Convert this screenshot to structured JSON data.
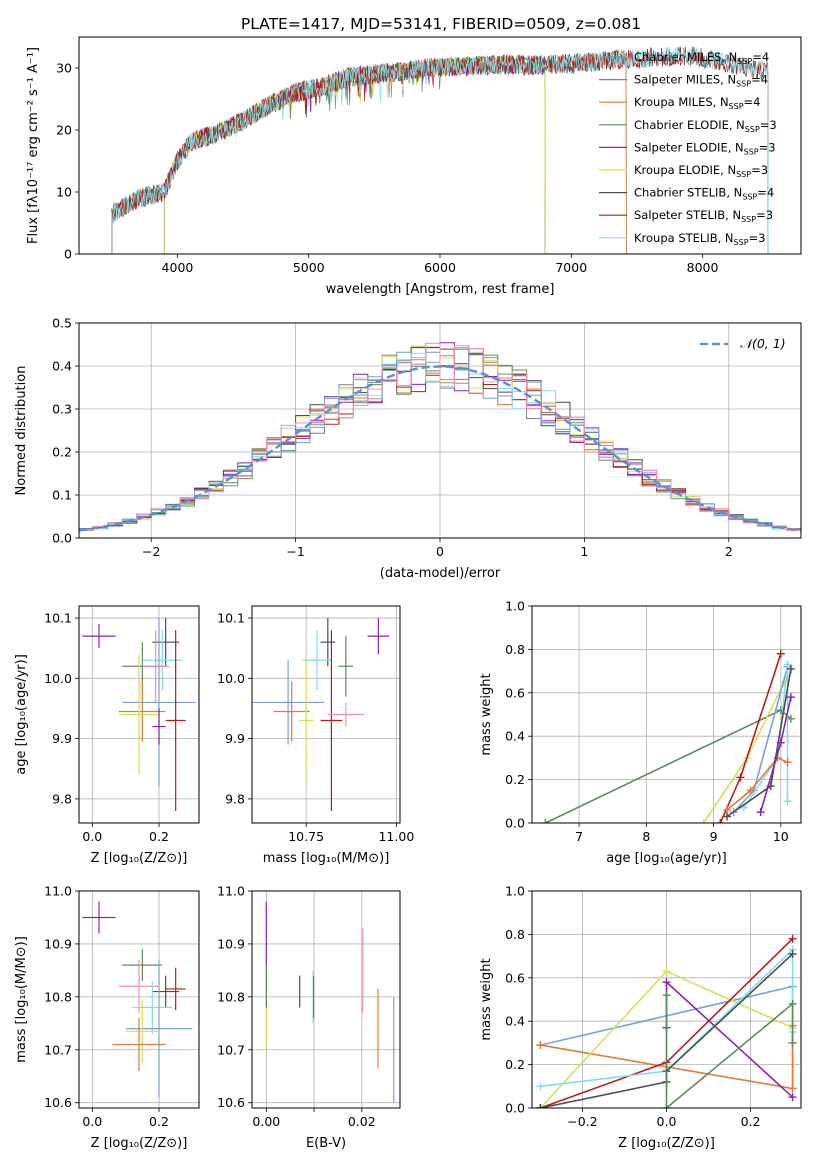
{
  "figure": {
    "title": "PLATE=1417, MJD=53141, FIBERID=0509, z=0.081"
  },
  "chart_data": [
    {
      "id": "spectrum",
      "type": "line",
      "xlabel": "wavelength [Angstrom, rest frame]",
      "ylabel": "Flux [fλ10⁻¹⁷ erg cm⁻² s⁻¹ A⁻¹]",
      "xlim": [
        3250,
        8750
      ],
      "ylim": [
        0,
        35
      ],
      "xticks": [
        4000,
        5000,
        6000,
        7000,
        8000
      ],
      "yticks": [
        0,
        10,
        20,
        30
      ],
      "grid": false,
      "legend_position": "right",
      "continuum": {
        "x": [
          3500,
          3700,
          3900,
          4000,
          4100,
          4300,
          4500,
          4700,
          4900,
          5100,
          5300,
          5500,
          5700,
          5900,
          6100,
          6300,
          6500,
          6700,
          6900,
          7100,
          7300,
          7500,
          7700,
          7900,
          8100,
          8300,
          8500
        ],
        "y": [
          6.5,
          9,
          10,
          15,
          18,
          19.5,
          21.5,
          24,
          26,
          27,
          28.5,
          29,
          29.5,
          30,
          30.2,
          30.4,
          30.6,
          30.4,
          30.6,
          30.9,
          31.2,
          31.5,
          31.8,
          32,
          31.2,
          30.2,
          29.5
        ]
      },
      "series": [
        {
          "name": "Chabrier MILES, N_SSP=4",
          "color": "#6a9fa3",
          "x_range": [
            3500,
            7420
          ]
        },
        {
          "name": "Salpeter MILES, N_SSP=4",
          "color": "#7f7f7f",
          "x_range": [
            3500,
            7420
          ]
        },
        {
          "name": "Kroupa MILES, N_SSP=4",
          "color": "#e07b39",
          "x_range": [
            3500,
            7420
          ]
        },
        {
          "name": "Chabrier ELODIE, N_SSP=3",
          "color": "#5b8c5a",
          "x_range": [
            3900,
            6800
          ]
        },
        {
          "name": "Salpeter ELODIE, N_SSP=3",
          "color": "#8e24aa",
          "x_range": [
            3900,
            6800
          ]
        },
        {
          "name": "Kroupa ELODIE, N_SSP=3",
          "color": "#d4e157",
          "x_range": [
            3900,
            6800
          ]
        },
        {
          "name": "Chabrier STELIB, N_SSP=4",
          "color": "#4d4d4d",
          "x_range": [
            3500,
            8500
          ]
        },
        {
          "name": "Salpeter STELIB, N_SSP=3",
          "color": "#b71c1c",
          "x_range": [
            3500,
            8500
          ]
        },
        {
          "name": "Kroupa STELIB, N_SSP=3",
          "color": "#80deea",
          "x_range": [
            3500,
            8500
          ]
        }
      ]
    },
    {
      "id": "residuals",
      "type": "bar",
      "xlabel": "(data-model)/error",
      "ylabel": "Normed distribution",
      "xlim": [
        -2.5,
        2.5
      ],
      "ylim": [
        0,
        0.5
      ],
      "xticks": [
        -2,
        -1,
        0,
        1,
        2
      ],
      "yticks": [
        0.0,
        0.1,
        0.2,
        0.3,
        0.4,
        0.5
      ],
      "grid": true,
      "legend": "𝒩(0, 1)",
      "gauss_color": "#5b8fd6",
      "bin_width": 0.1,
      "hist_colors": [
        "#6a9fa3",
        "#7f7f7f",
        "#e07b39",
        "#5b8c5a",
        "#8e24aa",
        "#d4e157",
        "#4d4d4d",
        "#b71c1c",
        "#80deea",
        "#7b9ee0",
        "#f48fb1"
      ]
    },
    {
      "id": "age_vs_Z",
      "type": "scatter",
      "xlabel": "Z [log₁₀(Z/Z⊙)]",
      "ylabel": "age  [log₁₀(age/yr)]",
      "xlim": [
        -0.04,
        0.32
      ],
      "ylim": [
        9.76,
        10.12
      ],
      "xticks": [
        0.0,
        0.2
      ],
      "yticks": [
        9.8,
        9.9,
        10.0,
        10.1
      ],
      "grid": true,
      "points": [
        {
          "x": 0.02,
          "y": 10.07,
          "xerr": 0.05,
          "yerr": 0.02,
          "color": "#8e24aa"
        },
        {
          "x": 0.22,
          "y": 10.06,
          "xerr": 0.04,
          "yerr": 0.04,
          "color": "#4d4d4d"
        },
        {
          "x": 0.21,
          "y": 10.03,
          "xerr": 0.06,
          "yerr": 0.05,
          "color": "#80deea"
        },
        {
          "x": 0.15,
          "y": 10.02,
          "xerr": 0.06,
          "yerr": 0.04,
          "color": "#5b8c5a"
        },
        {
          "x": 0.19,
          "y": 10.02,
          "xerr": 0.04,
          "yerr": 0.06,
          "color": "#f48fb1"
        },
        {
          "x": 0.2,
          "y": 9.96,
          "xerr": 0.11,
          "yerr": 0.14,
          "color": "#7b9ee0"
        },
        {
          "x": 0.15,
          "y": 9.945,
          "xerr": 0.07,
          "yerr": 0.05,
          "color": "#e07b39"
        },
        {
          "x": 0.14,
          "y": 9.94,
          "xerr": 0.06,
          "yerr": 0.1,
          "color": "#d4e157"
        },
        {
          "x": 0.25,
          "y": 9.93,
          "xerr": 0.03,
          "yerr": 0.15,
          "color": "#b71c1c"
        },
        {
          "x": 0.2,
          "y": 9.92,
          "xerr": 0.02,
          "yerr": 0.03,
          "color": "#8e24aa"
        }
      ]
    },
    {
      "id": "age_vs_mass",
      "type": "scatter",
      "xlabel": "mass [log₁₀(M/M⊙)]",
      "ylabel": "",
      "xlim": [
        10.6,
        11.01
      ],
      "ylim": [
        9.76,
        10.12
      ],
      "xticks": [
        10.75,
        11.0
      ],
      "yticks": [
        9.8,
        9.9,
        10.0,
        10.1
      ],
      "grid": true,
      "points": [
        {
          "x": 10.95,
          "y": 10.07,
          "xerr": 0.03,
          "yerr": 0.03,
          "color": "#8e24aa"
        },
        {
          "x": 10.81,
          "y": 10.06,
          "xerr": 0.02,
          "yerr": 0.04,
          "color": "#4d4d4d"
        },
        {
          "x": 10.78,
          "y": 10.03,
          "xerr": 0.04,
          "yerr": 0.05,
          "color": "#80deea"
        },
        {
          "x": 10.86,
          "y": 10.02,
          "xerr": 0.02,
          "yerr": 0.05,
          "color": "#5b8c5a"
        },
        {
          "x": 10.7,
          "y": 9.96,
          "xerr": 0.1,
          "yerr": 0.07,
          "color": "#7b9ee0"
        },
        {
          "x": 10.71,
          "y": 9.945,
          "xerr": 0.05,
          "yerr": 0.05,
          "color": "#e07b39"
        },
        {
          "x": 10.75,
          "y": 9.93,
          "xerr": 0.02,
          "yerr": 0.1,
          "color": "#d4e157"
        },
        {
          "x": 10.82,
          "y": 9.93,
          "xerr": 0.03,
          "yerr": 0.15,
          "color": "#b71c1c"
        },
        {
          "x": 10.86,
          "y": 9.94,
          "xerr": 0.05,
          "yerr": 0.02,
          "color": "#f48fb1"
        }
      ]
    },
    {
      "id": "weight_vs_age",
      "type": "line",
      "xlabel": "age  [log₁₀(age/yr)]",
      "ylabel": "mass weight",
      "xlim": [
        6.3,
        10.3
      ],
      "ylim": [
        0,
        1.0
      ],
      "xticks": [
        7,
        8,
        9,
        10
      ],
      "yticks": [
        0.0,
        0.2,
        0.4,
        0.6,
        0.8,
        1.0
      ],
      "grid": true,
      "series": [
        {
          "color": "#5b8c5a",
          "x": [
            6.5,
            10.0,
            10.15
          ],
          "y": [
            0.0,
            0.52,
            0.48
          ]
        },
        {
          "color": "#d4e157",
          "x": [
            8.85,
            9.5,
            10.05
          ],
          "y": [
            0.0,
            0.3,
            0.65
          ]
        },
        {
          "color": "#b71c1c",
          "x": [
            9.1,
            9.4,
            10.0
          ],
          "y": [
            0.0,
            0.21,
            0.78
          ]
        },
        {
          "color": "#7b9ee0",
          "x": [
            9.3,
            9.6,
            10.1
          ],
          "y": [
            0.05,
            0.15,
            0.72
          ]
        },
        {
          "color": "#80deea",
          "x": [
            9.45,
            9.95,
            10.1,
            10.1
          ],
          "y": [
            0.07,
            0.3,
            0.73,
            0.1
          ]
        },
        {
          "color": "#e07b39",
          "x": [
            9.2,
            9.55,
            9.95,
            10.1
          ],
          "y": [
            0.06,
            0.15,
            0.3,
            0.28
          ]
        },
        {
          "color": "#4d4d4d",
          "x": [
            9.2,
            9.85,
            10.15
          ],
          "y": [
            0.03,
            0.17,
            0.71
          ]
        },
        {
          "color": "#8e24aa",
          "x": [
            9.7,
            10.0,
            10.15
          ],
          "y": [
            0.05,
            0.37,
            0.58
          ]
        }
      ]
    },
    {
      "id": "mass_vs_Z",
      "type": "scatter",
      "xlabel": "Z [log₁₀(Z/Z⊙)]",
      "ylabel": "mass [log₁₀(M/M⊙)]",
      "xlim": [
        -0.04,
        0.32
      ],
      "ylim": [
        10.59,
        11.0
      ],
      "xticks": [
        0.0,
        0.2
      ],
      "yticks": [
        10.6,
        10.7,
        10.8,
        10.9,
        11.0
      ],
      "grid": true,
      "points": [
        {
          "x": 0.02,
          "y": 10.95,
          "xerr": 0.05,
          "yerr": 0.03,
          "color": "#8e24aa"
        },
        {
          "x": 0.15,
          "y": 10.86,
          "xerr": 0.06,
          "yerr": 0.03,
          "color": "#5b8c5a"
        },
        {
          "x": 0.14,
          "y": 10.82,
          "xerr": 0.06,
          "yerr": 0.05,
          "color": "#f48fb1"
        },
        {
          "x": 0.22,
          "y": 10.81,
          "xerr": 0.04,
          "yerr": 0.03,
          "color": "#4d4d4d"
        },
        {
          "x": 0.25,
          "y": 10.815,
          "xerr": 0.03,
          "yerr": 0.04,
          "color": "#b71c1c"
        },
        {
          "x": 0.18,
          "y": 10.78,
          "xerr": 0.06,
          "yerr": 0.05,
          "color": "#80deea"
        },
        {
          "x": 0.2,
          "y": 10.74,
          "xerr": 0.1,
          "yerr": 0.13,
          "color": "#7b9ee0"
        },
        {
          "x": 0.15,
          "y": 10.735,
          "xerr": 0.05,
          "yerr": 0.06,
          "color": "#d4e157"
        },
        {
          "x": 0.14,
          "y": 10.71,
          "xerr": 0.08,
          "yerr": 0.05,
          "color": "#e07b39"
        }
      ]
    },
    {
      "id": "mass_vs_ebv",
      "type": "scatter",
      "xlabel": "E(B-V)",
      "ylabel": "",
      "xlim": [
        -0.003,
        0.028
      ],
      "ylim": [
        10.59,
        11.0
      ],
      "xticks": [
        0.0,
        0.01,
        0.02
      ],
      "xticklabels": [
        "0.00",
        "",
        "0.02"
      ],
      "yticks": [
        10.6,
        10.7,
        10.8,
        10.9,
        11.0
      ],
      "grid": true,
      "points": [
        {
          "x": 0.0,
          "y": 10.92,
          "xerr": 0,
          "yerr": 0.06,
          "color": "#8e24aa"
        },
        {
          "x": 0.0,
          "y": 10.8,
          "xerr": 0,
          "yerr": 0.06,
          "color": "#d4e157"
        },
        {
          "x": 0.0,
          "y": 10.75,
          "xerr": 0,
          "yerr": 0.05,
          "color": "#d4e157"
        },
        {
          "x": 0.0,
          "y": 10.82,
          "xerr": 0,
          "yerr": 0.04,
          "color": "#5b8c5a"
        },
        {
          "x": 0.007,
          "y": 10.81,
          "xerr": 0,
          "yerr": 0.03,
          "color": "#4d4d4d"
        },
        {
          "x": 0.0098,
          "y": 10.8,
          "xerr": 0,
          "yerr": 0.05,
          "color": "#80deea"
        },
        {
          "x": 0.0099,
          "y": 10.8,
          "xerr": 0,
          "yerr": 0.04,
          "color": "#5b8c5a"
        },
        {
          "x": 0.0202,
          "y": 10.85,
          "xerr": 0,
          "yerr": 0.08,
          "color": "#f48fb1"
        },
        {
          "x": 0.0234,
          "y": 10.74,
          "xerr": 0,
          "yerr": 0.075,
          "color": "#e07b39"
        },
        {
          "x": 0.0267,
          "y": 10.7,
          "xerr": 0,
          "yerr": 0.1,
          "color": "#7b9ee0"
        }
      ]
    },
    {
      "id": "weight_vs_Z",
      "type": "line",
      "xlabel": "Z [log₁₀(Z/Z⊙)]",
      "ylabel": "mass weight",
      "xlim": [
        -0.32,
        0.32
      ],
      "ylim": [
        0,
        1.0
      ],
      "xticks": [
        -0.2,
        0.0,
        0.2
      ],
      "yticks": [
        0.0,
        0.2,
        0.4,
        0.6,
        0.8,
        1.0
      ],
      "grid": true,
      "series": [
        {
          "color": "#7b9ee0",
          "x": [
            -0.3,
            0.3,
            0.3
          ],
          "y": [
            0.29,
            0.56,
            0.09
          ]
        },
        {
          "color": "#e07b39",
          "x": [
            -0.3,
            0.3,
            0.3
          ],
          "y": [
            0.29,
            0.09,
            0.38
          ]
        },
        {
          "color": "#d4e157",
          "x": [
            -0.3,
            0.0,
            0.3
          ],
          "y": [
            0.0,
            0.63,
            0.37
          ]
        },
        {
          "color": "#b71c1c",
          "x": [
            -0.3,
            0.0,
            0.3
          ],
          "y": [
            0.0,
            0.21,
            0.78
          ]
        },
        {
          "color": "#80deea",
          "x": [
            -0.3,
            0.0,
            0.3,
            0.3
          ],
          "y": [
            0.1,
            0.17,
            0.73,
            0.35
          ]
        },
        {
          "color": "#4d4d4d",
          "x": [
            -0.3,
            0.0,
            0.0,
            0.3
          ],
          "y": [
            0.0,
            0.12,
            0.17,
            0.71
          ]
        },
        {
          "color": "#8e24aa",
          "x": [
            0.0,
            0.0,
            0.3
          ],
          "y": [
            0.37,
            0.58,
            0.05
          ]
        },
        {
          "color": "#5b8c5a",
          "x": [
            0.0,
            0.0,
            0.3,
            0.3
          ],
          "y": [
            0.52,
            0.0,
            0.48,
            0.3
          ]
        }
      ]
    }
  ]
}
